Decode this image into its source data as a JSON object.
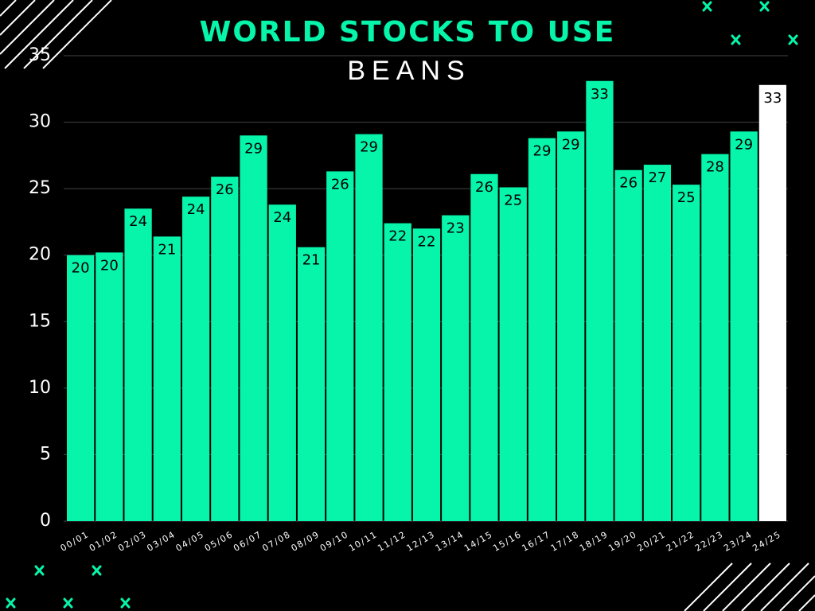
{
  "chart_data": {
    "type": "bar",
    "title": "WORLD STOCKS TO USE",
    "subtitle": "BEANS",
    "categories": [
      "00/01",
      "01/02",
      "02/03",
      "03/04",
      "04/05",
      "05/06",
      "06/07",
      "07/08",
      "08/09",
      "09/10",
      "10/11",
      "11/12",
      "12/13",
      "13/14",
      "14/15",
      "15/16",
      "16/17",
      "17/18",
      "18/19",
      "19/20",
      "20/21",
      "21/22",
      "22/23",
      "23/24",
      "24/25"
    ],
    "values": [
      20.0,
      20.2,
      23.5,
      21.4,
      24.4,
      25.9,
      29.0,
      23.8,
      20.6,
      26.3,
      29.1,
      22.4,
      22.0,
      23.0,
      26.1,
      25.1,
      28.8,
      29.3,
      33.1,
      26.4,
      26.8,
      25.3,
      27.6,
      29.3,
      32.8
    ],
    "value_labels": [
      "20",
      "20",
      "24",
      "21",
      "24",
      "26",
      "29",
      "24",
      "21",
      "26",
      "29",
      "22",
      "22",
      "23",
      "26",
      "25",
      "29",
      "29",
      "33",
      "26",
      "27",
      "25",
      "28",
      "29",
      "33"
    ],
    "colors": [
      "#06f5aa",
      "#06f5aa",
      "#06f5aa",
      "#06f5aa",
      "#06f5aa",
      "#06f5aa",
      "#06f5aa",
      "#06f5aa",
      "#06f5aa",
      "#06f5aa",
      "#06f5aa",
      "#06f5aa",
      "#06f5aa",
      "#06f5aa",
      "#06f5aa",
      "#06f5aa",
      "#06f5aa",
      "#06f5aa",
      "#06f5aa",
      "#06f5aa",
      "#06f5aa",
      "#06f5aa",
      "#06f5aa",
      "#06f5aa",
      "#ffffff"
    ],
    "ylim": [
      0,
      35
    ],
    "yticks": [
      0,
      5,
      10,
      15,
      20,
      25,
      30,
      35
    ],
    "grid": true
  }
}
